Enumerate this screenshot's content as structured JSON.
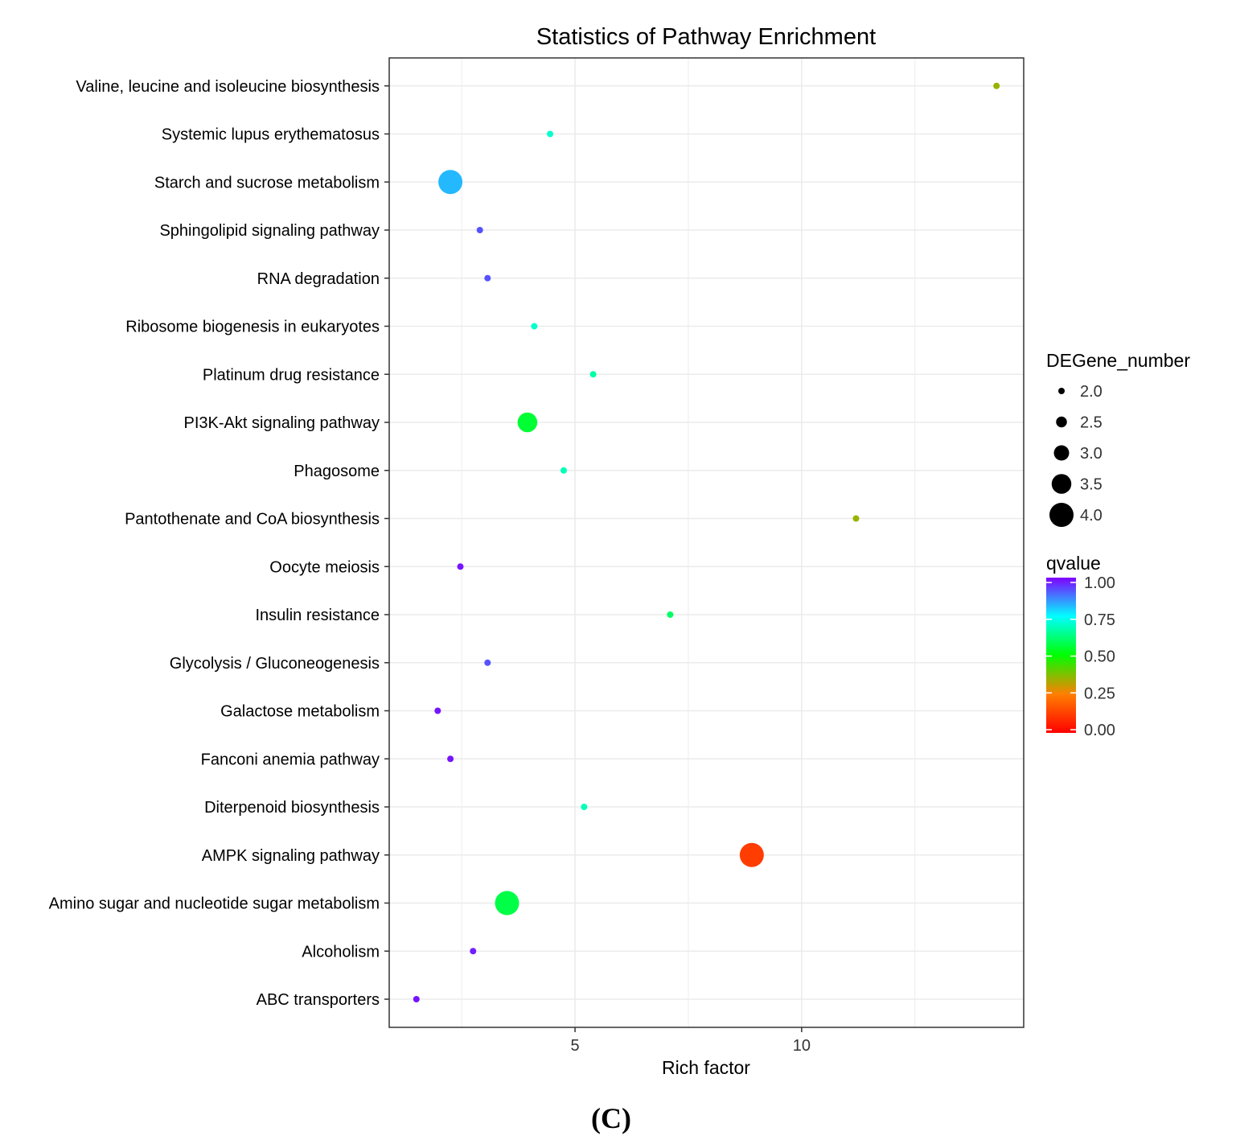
{
  "chart_data": {
    "type": "scatter",
    "title": "Statistics of Pathway Enrichment",
    "xlabel": "Rich factor",
    "ylabel": "",
    "xlim": [
      0.9,
      14.9
    ],
    "x_ticks": [
      5,
      10
    ],
    "x_tick_labels": [
      "5",
      "10"
    ],
    "grid": true,
    "categories": [
      "ABC transporters",
      "Alcoholism",
      "Amino sugar and nucleotide sugar metabolism",
      "AMPK signaling pathway",
      "Diterpenoid biosynthesis",
      "Fanconi anemia pathway",
      "Galactose metabolism",
      "Glycolysis / Gluconeogenesis",
      "Insulin resistance",
      "Oocyte meiosis",
      "Pantothenate and CoA biosynthesis",
      "Phagosome",
      "PI3K-Akt signaling pathway",
      "Platinum drug resistance",
      "Ribosome biogenesis in eukaryotes",
      "RNA degradation",
      "Sphingolipid signaling pathway",
      "Starch and sucrose metabolism",
      "Systemic lupus erythematosus",
      "Valine, leucine and isoleucine biosynthesis"
    ],
    "points": [
      {
        "pathway": "ABC transporters",
        "rich_factor": 1.5,
        "de_gene_number": 2,
        "qvalue": 0.98
      },
      {
        "pathway": "Alcoholism",
        "rich_factor": 2.75,
        "de_gene_number": 2,
        "qvalue": 0.97
      },
      {
        "pathway": "Amino sugar and nucleotide sugar metabolism",
        "rich_factor": 3.5,
        "de_gene_number": 4,
        "qvalue": 0.57
      },
      {
        "pathway": "AMPK signaling pathway",
        "rich_factor": 8.9,
        "de_gene_number": 4,
        "qvalue": 0.12
      },
      {
        "pathway": "Diterpenoid biosynthesis",
        "rich_factor": 5.2,
        "de_gene_number": 2,
        "qvalue": 0.68
      },
      {
        "pathway": "Fanconi anemia pathway",
        "rich_factor": 2.25,
        "de_gene_number": 2,
        "qvalue": 0.98
      },
      {
        "pathway": "Galactose metabolism",
        "rich_factor": 1.97,
        "de_gene_number": 2,
        "qvalue": 0.98
      },
      {
        "pathway": "Glycolysis / Gluconeogenesis",
        "rich_factor": 3.07,
        "de_gene_number": 2,
        "qvalue": 0.92
      },
      {
        "pathway": "Insulin resistance",
        "rich_factor": 7.1,
        "de_gene_number": 2,
        "qvalue": 0.6
      },
      {
        "pathway": "Oocyte meiosis",
        "rich_factor": 2.47,
        "de_gene_number": 2,
        "qvalue": 0.98
      },
      {
        "pathway": "Pantothenate and CoA biosynthesis",
        "rich_factor": 11.2,
        "de_gene_number": 2,
        "qvalue": 0.35
      },
      {
        "pathway": "Phagosome",
        "rich_factor": 4.75,
        "de_gene_number": 2,
        "qvalue": 0.68
      },
      {
        "pathway": "PI3K-Akt signaling pathway",
        "rich_factor": 3.95,
        "de_gene_number": 3.5,
        "qvalue": 0.55
      },
      {
        "pathway": "Platinum drug resistance",
        "rich_factor": 5.4,
        "de_gene_number": 2,
        "qvalue": 0.66
      },
      {
        "pathway": "Ribosome biogenesis in eukaryotes",
        "rich_factor": 4.1,
        "de_gene_number": 2,
        "qvalue": 0.7
      },
      {
        "pathway": "RNA degradation",
        "rich_factor": 3.07,
        "de_gene_number": 2,
        "qvalue": 0.92
      },
      {
        "pathway": "Sphingolipid signaling pathway",
        "rich_factor": 2.9,
        "de_gene_number": 2,
        "qvalue": 0.92
      },
      {
        "pathway": "Starch and sucrose metabolism",
        "rich_factor": 2.25,
        "de_gene_number": 4,
        "qvalue": 0.82
      },
      {
        "pathway": "Systemic lupus erythematosus",
        "rich_factor": 4.45,
        "de_gene_number": 2,
        "qvalue": 0.7
      },
      {
        "pathway": "Valine, leucine and isoleucine biosynthesis",
        "rich_factor": 14.3,
        "de_gene_number": 2,
        "qvalue": 0.35
      }
    ],
    "size_legend": {
      "title": "DEGene_number",
      "values": [
        2.0,
        2.5,
        3.0,
        3.5,
        4.0
      ],
      "labels": [
        "2.0",
        "2.5",
        "3.0",
        "3.5",
        "4.0"
      ]
    },
    "color_legend": {
      "title": "qvalue",
      "ticks": [
        1.0,
        0.75,
        0.5,
        0.25,
        0.0
      ],
      "labels": [
        "1.00",
        "0.75",
        "0.50",
        "0.25",
        "0.00"
      ],
      "colors_low_to_high": [
        "#ff0000",
        "#ff7f00",
        "#00ff00",
        "#00ffff",
        "#8000ff"
      ]
    },
    "legend_position": "right"
  },
  "panel_label": "(C)",
  "colors": {
    "background": "#ffffff",
    "panel_border": "#333333",
    "grid": "#ebebeb",
    "text": "#000000"
  }
}
